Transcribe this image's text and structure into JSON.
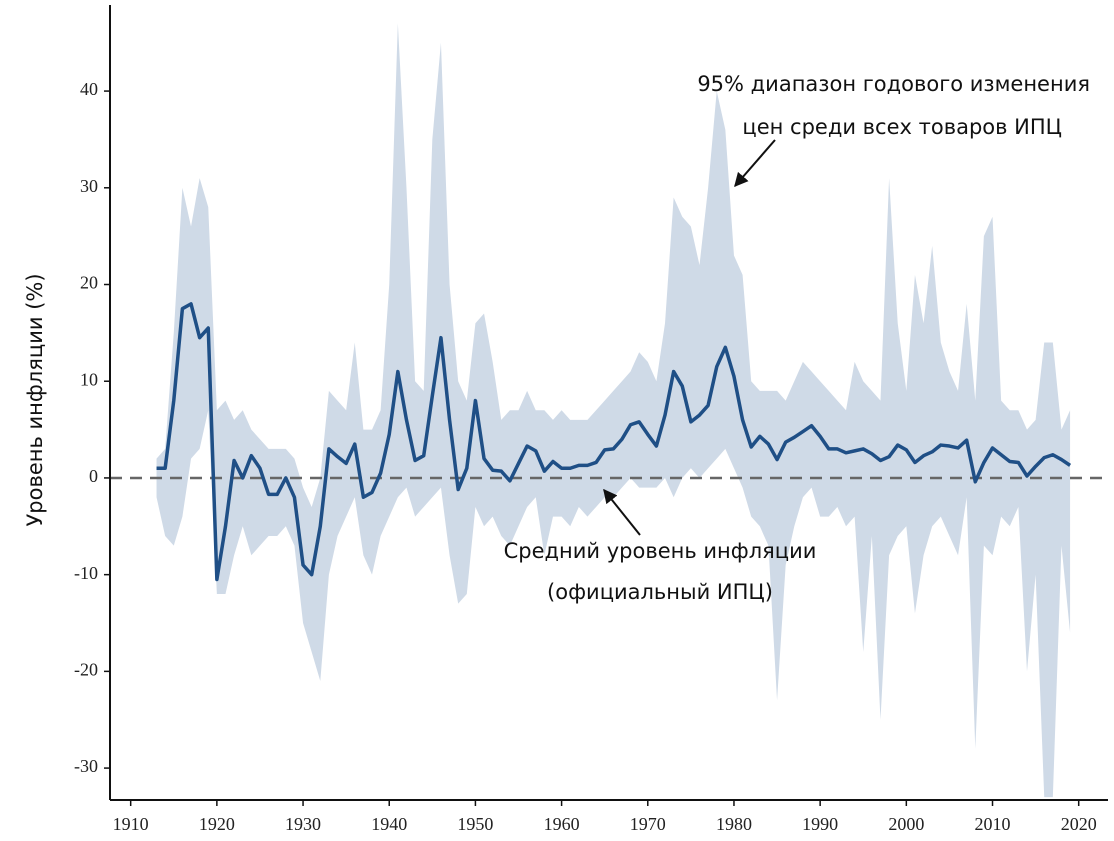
{
  "chart_data": {
    "type": "line",
    "y_label": "Уровень инфляции (%)",
    "x": [
      1913,
      1914,
      1915,
      1916,
      1917,
      1918,
      1919,
      1920,
      1921,
      1922,
      1923,
      1924,
      1925,
      1926,
      1927,
      1928,
      1929,
      1930,
      1931,
      1932,
      1933,
      1934,
      1935,
      1936,
      1937,
      1938,
      1939,
      1940,
      1941,
      1942,
      1943,
      1944,
      1945,
      1946,
      1947,
      1948,
      1949,
      1950,
      1951,
      1952,
      1953,
      1954,
      1955,
      1956,
      1957,
      1958,
      1959,
      1960,
      1961,
      1962,
      1963,
      1964,
      1965,
      1966,
      1967,
      1968,
      1969,
      1970,
      1971,
      1972,
      1973,
      1974,
      1975,
      1976,
      1977,
      1978,
      1979,
      1980,
      1981,
      1982,
      1983,
      1984,
      1985,
      1986,
      1987,
      1988,
      1989,
      1990,
      1991,
      1992,
      1993,
      1994,
      1995,
      1996,
      1997,
      1998,
      1999,
      2000,
      2001,
      2002,
      2003,
      2004,
      2005,
      2006,
      2007,
      2008,
      2009,
      2010,
      2011,
      2012,
      2013,
      2014,
      2015,
      2016,
      2017,
      2018,
      2019
    ],
    "series": [
      {
        "color": "#1f4f86",
        "values": [
          1,
          1,
          8,
          17.5,
          18,
          14.5,
          15.5,
          -10.5,
          -5,
          1.8,
          0,
          2.3,
          1,
          -1.7,
          -1.7,
          0,
          -2,
          -9,
          -10,
          -5,
          3,
          2.2,
          1.5,
          3.5,
          -2,
          -1.5,
          0.5,
          4.5,
          11,
          6,
          1.8,
          2.3,
          8.5,
          14.5,
          6,
          -1.2,
          1,
          8,
          2,
          0.8,
          0.7,
          -0.3,
          1.5,
          3.3,
          2.8,
          0.7,
          1.7,
          1,
          1,
          1.3,
          1.3,
          1.6,
          2.9,
          3,
          4,
          5.5,
          5.8,
          4.5,
          3.3,
          6.5,
          11,
          9.5,
          5.8,
          6.5,
          7.5,
          11.5,
          13.5,
          10.5,
          6,
          3.2,
          4.3,
          3.5,
          1.9,
          3.7,
          4.2,
          4.8,
          5.4,
          4.3,
          3,
          3,
          2.6,
          2.8,
          3,
          2.5,
          1.8,
          2.2,
          3.4,
          2.9,
          1.6,
          2.3,
          2.7,
          3.4,
          3.3,
          3.1,
          3.9,
          -0.4,
          1.6,
          3.1,
          2.4,
          1.7,
          1.6,
          0.2,
          1.2,
          2.1,
          2.4,
          1.9,
          1.3
        ]
      }
    ],
    "band": {
      "color": "#cfdae7",
      "upper": [
        2,
        3,
        15,
        30,
        26,
        31,
        28,
        7,
        8,
        6,
        7,
        5,
        4,
        3,
        3,
        3,
        2,
        -1,
        -3,
        0,
        9,
        8,
        7,
        14,
        5,
        5,
        7,
        20,
        47,
        30,
        10,
        9,
        35,
        45,
        20,
        10,
        8,
        16,
        17,
        12,
        6,
        7,
        7,
        9,
        7,
        7,
        6,
        7,
        6,
        6,
        6,
        7,
        8,
        9,
        10,
        11,
        13,
        12,
        10,
        16,
        29,
        27,
        26,
        22,
        30,
        40,
        36,
        23,
        21,
        10,
        9,
        9,
        9,
        8,
        10,
        12,
        11,
        10,
        9,
        8,
        7,
        12,
        10,
        9,
        8,
        31,
        16,
        9,
        21,
        16,
        24,
        14,
        11,
        9,
        18,
        8,
        25,
        27,
        8,
        7,
        7,
        5,
        6,
        14,
        14,
        5,
        7
      ],
      "lower": [
        -2,
        -6,
        -7,
        -4,
        2,
        3,
        7,
        -12,
        -12,
        -8,
        -5,
        -8,
        -7,
        -6,
        -6,
        -5,
        -7,
        -15,
        -18,
        -21,
        -10,
        -6,
        -4,
        -2,
        -8,
        -10,
        -6,
        -4,
        -2,
        -1,
        -4,
        -3,
        -2,
        -1,
        -8,
        -13,
        -12,
        -3,
        -5,
        -4,
        -6,
        -7,
        -5,
        -3,
        -2,
        -8,
        -4,
        -4,
        -5,
        -3,
        -4,
        -3,
        -2,
        -2,
        -1,
        0,
        -1,
        -1,
        -1,
        0,
        -2,
        0,
        1,
        0,
        1,
        2,
        3,
        1,
        -1,
        -4,
        -5,
        -7,
        -23,
        -9,
        -5,
        -2,
        -1,
        -4,
        -4,
        -3,
        -5,
        -4,
        -18,
        -6,
        -25,
        -8,
        -6,
        -5,
        -14,
        -8,
        -5,
        -4,
        -6,
        -8,
        -2,
        -28,
        -7,
        -8,
        -4,
        -5,
        -3,
        -20,
        -10,
        -33,
        -33,
        -7,
        -16
      ]
    },
    "reference_line": 0,
    "xlim": [
      1907.6,
      2023.4
    ],
    "ylim": [
      -33.3,
      48.9
    ],
    "xticks": [
      1910,
      1920,
      1930,
      1940,
      1950,
      1960,
      1970,
      1980,
      1990,
      2000,
      2010,
      2020
    ],
    "yticks": [
      -30,
      -20,
      -10,
      0,
      10,
      20,
      30,
      40
    ],
    "annotations": [
      [
        "95% диапазон годового изменения",
        "цен среди всех товаров ИПЦ"
      ],
      [
        "Средний уровень инфляции",
        "(официальный ИПЦ)"
      ]
    ]
  }
}
